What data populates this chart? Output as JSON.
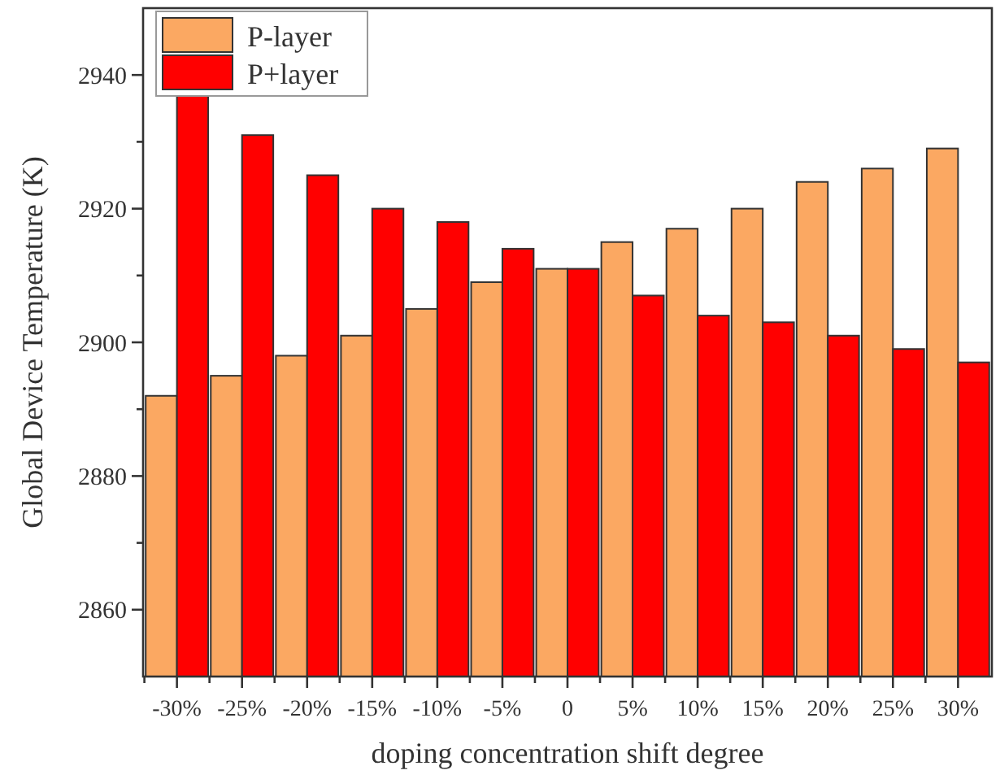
{
  "chart_data": {
    "type": "bar",
    "xlabel": "doping concentration shift degree",
    "ylabel": "Global Device Temperature (K)",
    "categories": [
      "-30%",
      "-25%",
      "-20%",
      "-15%",
      "-10%",
      "-5%",
      "0",
      "5%",
      "10%",
      "15%",
      "20%",
      "25%",
      "30%"
    ],
    "series": [
      {
        "name": "P-layer",
        "color": "#fba862",
        "values": [
          2892,
          2895,
          2898,
          2901,
          2905,
          2909,
          2911,
          2915,
          2917,
          2920,
          2924,
          2926,
          2929
        ]
      },
      {
        "name": "P+layer",
        "color": "#ff0000",
        "values": [
          2937,
          2931,
          2925,
          2920,
          2918,
          2914,
          2911,
          2907,
          2904,
          2903,
          2901,
          2899,
          2897
        ]
      }
    ],
    "ylim": [
      2850,
      2950
    ],
    "yticks": [
      2860,
      2880,
      2900,
      2920,
      2940,
      {
        "value": 2870,
        "label": null
      },
      {
        "value": 2890,
        "label": null
      },
      {
        "value": 2910,
        "label": null
      },
      {
        "value": 2930,
        "label": null
      }
    ],
    "grid": false,
    "legend": "top left"
  }
}
